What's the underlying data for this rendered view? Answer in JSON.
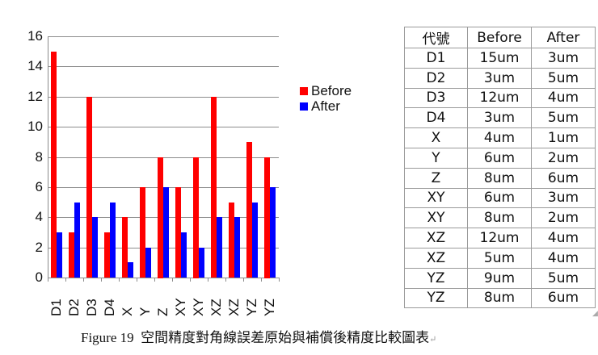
{
  "chart_data": {
    "type": "bar",
    "title": "",
    "xlabel": "",
    "ylabel": "",
    "categories": [
      "D1",
      "D2",
      "D3",
      "D4",
      "X",
      "Y",
      "Z",
      "XY",
      "XY",
      "XZ",
      "XZ",
      "YZ",
      "YZ"
    ],
    "series": [
      {
        "name": "Before",
        "color": "#ff0000",
        "values": [
          15,
          3,
          12,
          3,
          4,
          6,
          8,
          6,
          8,
          12,
          5,
          9,
          8
        ]
      },
      {
        "name": "After",
        "color": "#0000ff",
        "values": [
          3,
          5,
          4,
          5,
          1,
          2,
          6,
          3,
          2,
          4,
          4,
          5,
          6
        ]
      }
    ],
    "ylim": [
      0,
      16
    ],
    "yticks": [
      0,
      2,
      4,
      6,
      8,
      10,
      12,
      14,
      16
    ],
    "grid": true,
    "legend_position": "right",
    "x_tick_rotation": -90
  },
  "legend": {
    "items": [
      {
        "label": "Before",
        "color": "#ff0000"
      },
      {
        "label": "After",
        "color": "#0000ff"
      }
    ]
  },
  "table": {
    "headers": [
      "代號",
      "Before",
      "After"
    ],
    "rows": [
      [
        "D1",
        "15um",
        "3um"
      ],
      [
        "D2",
        "3um",
        "5um"
      ],
      [
        "D3",
        "12um",
        "4um"
      ],
      [
        "D4",
        "3um",
        "5um"
      ],
      [
        "X",
        "4um",
        "1um"
      ],
      [
        "Y",
        "6um",
        "2um"
      ],
      [
        "Z",
        "8um",
        "6um"
      ],
      [
        "XY",
        "6um",
        "3um"
      ],
      [
        "XY",
        "8um",
        "2um"
      ],
      [
        "XZ",
        "12um",
        "4um"
      ],
      [
        "XZ",
        "5um",
        "4um"
      ],
      [
        "YZ",
        "9um",
        "5um"
      ],
      [
        "YZ",
        "8um",
        "6um"
      ]
    ]
  },
  "caption": {
    "label": "Figure 19",
    "text": "空間精度對角線誤差原始與補償後精度比較圖表",
    "mark": "↵"
  }
}
